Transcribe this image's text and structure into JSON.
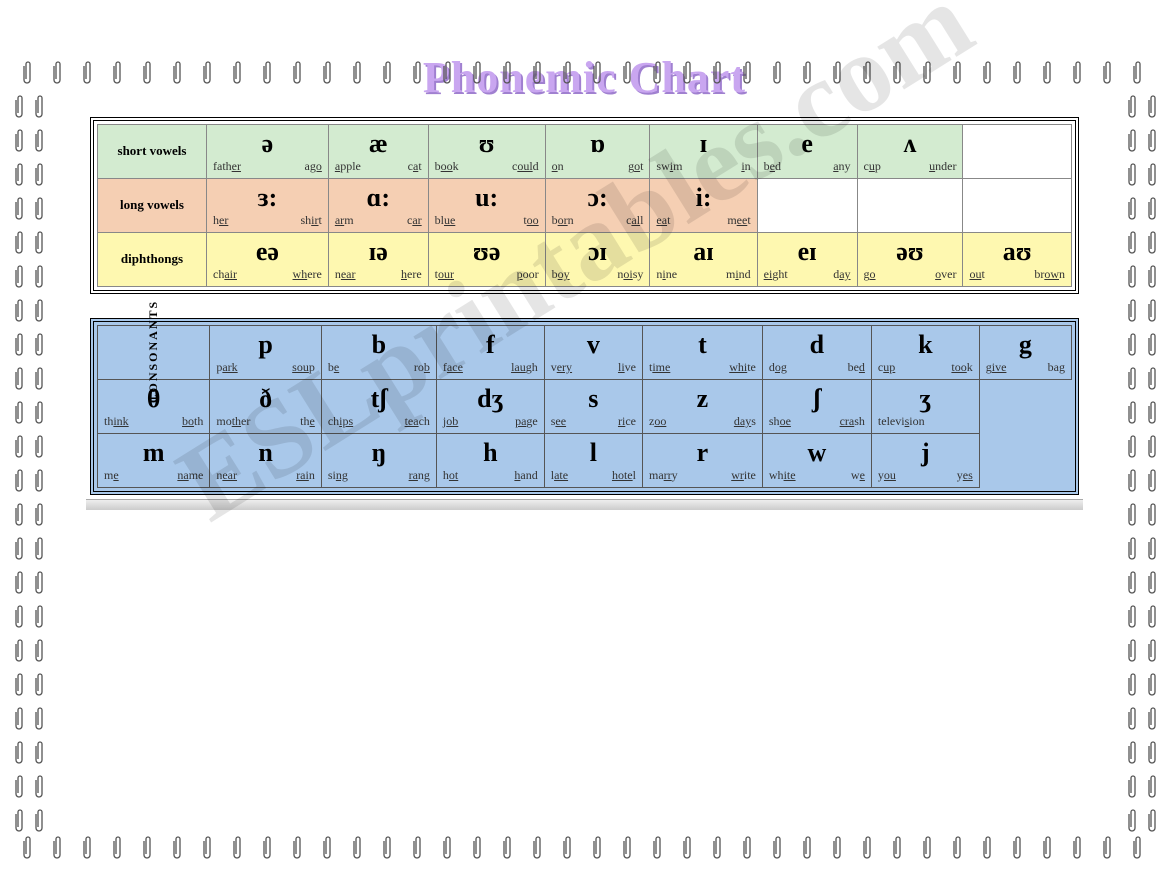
{
  "title": "Phonemic Chart",
  "colors": {
    "short_vowels": "#d3ebd0",
    "long_vowels": "#f5cfb3",
    "diphthongs": "#fef8b0",
    "consonants": "#a9c8ea",
    "empty": "#ffffff",
    "title_fill": "#c9a6f0",
    "title_shadow": "#a080d0"
  },
  "vowel_table": {
    "columns": 8,
    "rows": [
      {
        "label": "short vowels",
        "bg": "bg-green",
        "cells": [
          {
            "sym": "ə",
            "ex": [
              [
                "fath",
                "er"
              ],
              [
                "a",
                "go"
              ]
            ]
          },
          {
            "sym": "æ",
            "ex": [
              [
                "a",
                "pple"
              ],
              [
                "c",
                "a",
                "t"
              ]
            ]
          },
          {
            "sym": "ʊ",
            "ex": [
              [
                "b",
                "oo",
                "k"
              ],
              [
                "c",
                "oul",
                "d"
              ]
            ]
          },
          {
            "sym": "ɒ",
            "ex": [
              [
                "o",
                "n"
              ],
              [
                "g",
                "o",
                "t"
              ]
            ]
          },
          {
            "sym": "ɪ",
            "ex": [
              [
                "sw",
                "i",
                "m"
              ],
              [
                "i",
                "n"
              ]
            ]
          },
          {
            "sym": "e",
            "ex": [
              [
                "b",
                "e",
                "d"
              ],
              [
                "a",
                "ny"
              ]
            ]
          },
          {
            "sym": "ʌ",
            "ex": [
              [
                "c",
                "u",
                "p"
              ],
              [
                "u",
                "nder"
              ]
            ]
          },
          null
        ]
      },
      {
        "label": "long vowels",
        "bg": "bg-orange",
        "cells": [
          {
            "sym": "ɜ:",
            "ex": [
              [
                "h",
                "er"
              ],
              [
                "sh",
                "ir",
                "t"
              ]
            ]
          },
          {
            "sym": "ɑ:",
            "ex": [
              [
                "ar",
                "m"
              ],
              [
                "c",
                "ar"
              ]
            ]
          },
          {
            "sym": "u:",
            "ex": [
              [
                "bl",
                "ue"
              ],
              [
                "t",
                "oo"
              ]
            ]
          },
          {
            "sym": "ɔ:",
            "ex": [
              [
                "b",
                "or",
                "n"
              ],
              [
                "c",
                "al",
                "l"
              ]
            ]
          },
          {
            "sym": "i:",
            "ex": [
              [
                "ea",
                "t"
              ],
              [
                "m",
                "ee",
                "t"
              ]
            ]
          },
          null,
          null,
          null
        ]
      },
      {
        "label": "diphthongs",
        "bg": "bg-yellow",
        "cells": [
          {
            "sym": "eə",
            "ex": [
              [
                "ch",
                "air"
              ],
              [
                "wh",
                "ere"
              ]
            ]
          },
          {
            "sym": "ɪə",
            "ex": [
              [
                "n",
                "ear"
              ],
              [
                "h",
                "ere"
              ]
            ]
          },
          {
            "sym": "ʊə",
            "ex": [
              [
                "t",
                "our"
              ],
              [
                "p",
                "oor"
              ]
            ]
          },
          {
            "sym": "ɔɪ",
            "ex": [
              [
                "b",
                "oy"
              ],
              [
                "n",
                "oi",
                "sy"
              ]
            ]
          },
          {
            "sym": "aɪ",
            "ex": [
              [
                "n",
                "i",
                "ne"
              ],
              [
                "m",
                "i",
                "nd"
              ]
            ]
          },
          {
            "sym": "eɪ",
            "ex": [
              [
                "ei",
                "ght"
              ],
              [
                "d",
                "ay"
              ]
            ]
          },
          {
            "sym": "əʊ",
            "ex": [
              [
                "g",
                "o"
              ],
              [
                "o",
                "ver"
              ]
            ]
          },
          {
            "sym": "aʊ",
            "ex": [
              [
                "ou",
                "t"
              ],
              [
                "br",
                "ow",
                "n"
              ]
            ]
          }
        ]
      }
    ]
  },
  "consonant_table": {
    "label": "CONSONANTS",
    "columns": 8,
    "rows": [
      [
        {
          "sym": "p",
          "ex": [
            [
              "p",
              "ark"
            ],
            [
              "sou",
              "p"
            ]
          ]
        },
        {
          "sym": "b",
          "ex": [
            [
              "b",
              "e"
            ],
            [
              "ro",
              "b"
            ]
          ]
        },
        {
          "sym": "f",
          "ex": [
            [
              "f",
              "ace"
            ],
            [
              "lau",
              "gh"
            ]
          ]
        },
        {
          "sym": "v",
          "ex": [
            [
              "v",
              "ery"
            ],
            [
              "li",
              "ve"
            ]
          ]
        },
        {
          "sym": "t",
          "ex": [
            [
              "t",
              "ime"
            ],
            [
              "whi",
              "te"
            ]
          ]
        },
        {
          "sym": "d",
          "ex": [
            [
              "d",
              "og"
            ],
            [
              "be",
              "d"
            ]
          ]
        },
        {
          "sym": "k",
          "ex": [
            [
              "c",
              "up"
            ],
            [
              "too",
              "k"
            ]
          ]
        },
        {
          "sym": "g",
          "ex": [
            [
              "g",
              "ive"
            ],
            [
              "ba",
              "g"
            ]
          ]
        }
      ],
      [
        {
          "sym": "θ",
          "ex": [
            [
              "th",
              "ink"
            ],
            [
              "bo",
              "th"
            ]
          ]
        },
        {
          "sym": "ð",
          "ex": [
            [
              "mo",
              "th",
              "er"
            ],
            [
              "th",
              "e"
            ]
          ]
        },
        {
          "sym": "tʃ",
          "ex": [
            [
              "ch",
              "ips"
            ],
            [
              "tea",
              "ch"
            ]
          ]
        },
        {
          "sym": "dʒ",
          "ex": [
            [
              "j",
              "ob"
            ],
            [
              "pa",
              "ge"
            ]
          ]
        },
        {
          "sym": "s",
          "ex": [
            [
              "s",
              "ee"
            ],
            [
              "ri",
              "ce"
            ]
          ]
        },
        {
          "sym": "z",
          "ex": [
            [
              "z",
              "oo"
            ],
            [
              "day",
              "s"
            ]
          ]
        },
        {
          "sym": "ʃ",
          "ex": [
            [
              "sh",
              "oe"
            ],
            [
              "cra",
              "sh"
            ]
          ]
        },
        {
          "sym": "ʒ",
          "ex": [
            [
              "televi",
              "s",
              "ion"
            ]
          ]
        }
      ],
      [
        {
          "sym": "m",
          "ex": [
            [
              "m",
              "e"
            ],
            [
              "na",
              "me"
            ]
          ]
        },
        {
          "sym": "n",
          "ex": [
            [
              "n",
              "ear"
            ],
            [
              "rai",
              "n"
            ]
          ]
        },
        {
          "sym": "ŋ",
          "ex": [
            [
              "si",
              "ng"
            ],
            [
              "ra",
              "ng"
            ]
          ]
        },
        {
          "sym": "h",
          "ex": [
            [
              "h",
              "ot"
            ],
            [
              "h",
              "and"
            ]
          ]
        },
        {
          "sym": "l",
          "ex": [
            [
              "l",
              "ate"
            ],
            [
              "hote",
              "l"
            ]
          ]
        },
        {
          "sym": "r",
          "ex": [
            [
              "ma",
              "rr",
              "y"
            ],
            [
              "wr",
              "ite"
            ]
          ]
        },
        {
          "sym": "w",
          "ex": [
            [
              "wh",
              "ite"
            ],
            [
              "w",
              "e"
            ]
          ]
        },
        {
          "sym": "j",
          "ex": [
            [
              "y",
              "ou"
            ],
            [
              "y",
              "es"
            ]
          ]
        }
      ]
    ]
  },
  "watermark": "ESLprintables.com",
  "clip_glyph": "𝄜"
}
